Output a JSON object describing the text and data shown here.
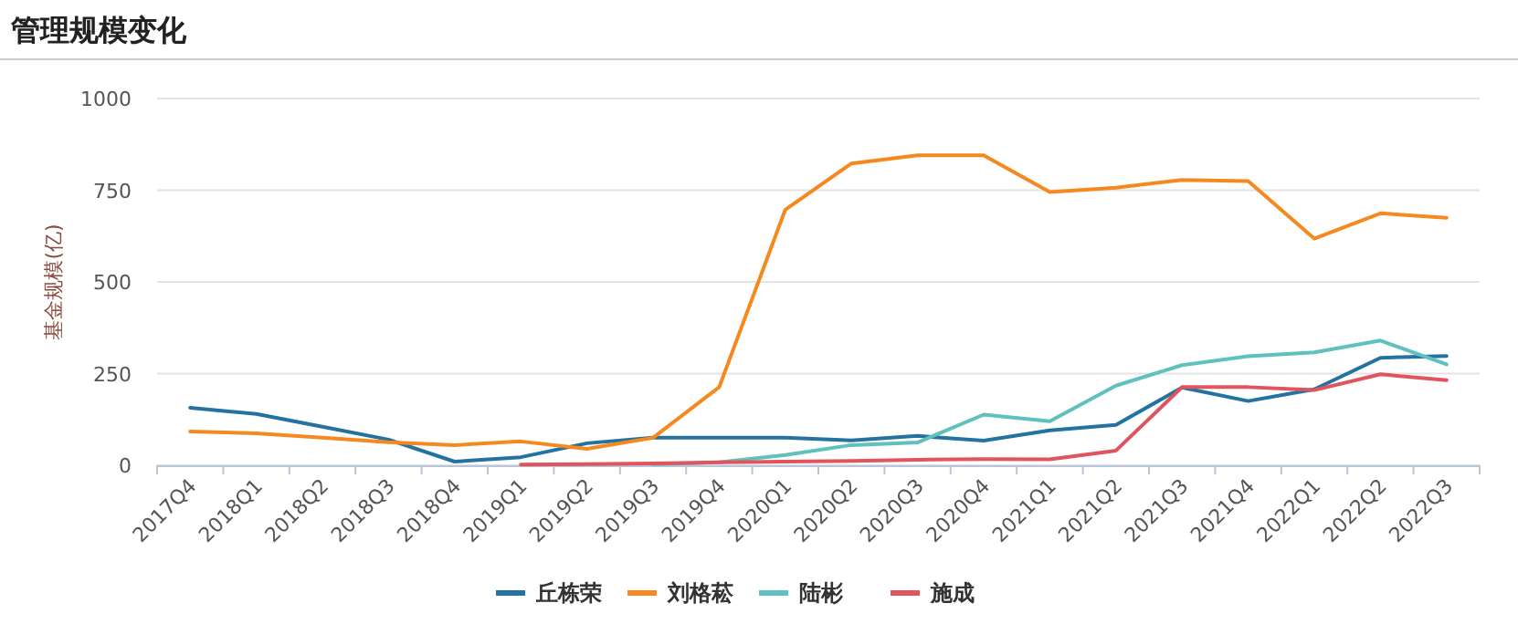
{
  "chart_data": {
    "type": "line",
    "title": "管理规模变化",
    "ylabel": "基金规模(亿)",
    "categories": [
      "2017Q4",
      "2018Q1",
      "2018Q2",
      "2018Q3",
      "2018Q4",
      "2019Q1",
      "2019Q2",
      "2019Q3",
      "2019Q4",
      "2020Q1",
      "2020Q2",
      "2020Q3",
      "2020Q4",
      "2021Q1",
      "2021Q2",
      "2021Q3",
      "2021Q4",
      "2022Q1",
      "2022Q2",
      "2022Q3"
    ],
    "series": [
      {
        "name": "丘栋荣",
        "color": "#23729f",
        "values": [
          157,
          140,
          105,
          70,
          10,
          22,
          60,
          75,
          75,
          75,
          68,
          80,
          67,
          95,
          110,
          212,
          175,
          207,
          293,
          298
        ]
      },
      {
        "name": "刘格菘",
        "color": "#f5891f",
        "values": [
          92,
          87,
          75,
          63,
          55,
          65,
          45,
          75,
          213,
          697,
          823,
          845,
          845,
          745,
          757,
          778,
          775,
          618,
          687,
          675
        ]
      },
      {
        "name": "陆彬",
        "color": "#5fc1bd",
        "values": [
          null,
          null,
          null,
          null,
          null,
          null,
          null,
          3,
          8,
          28,
          55,
          62,
          138,
          120,
          217,
          273,
          297,
          308,
          340,
          275
        ]
      },
      {
        "name": "施成",
        "color": "#e0545e",
        "values": [
          null,
          null,
          null,
          null,
          null,
          2,
          3,
          5,
          8,
          10,
          12,
          15,
          17,
          16,
          40,
          213,
          213,
          205,
          248,
          232
        ]
      }
    ],
    "ylim": [
      0,
      1000
    ],
    "yticks": [
      0,
      250,
      500,
      750,
      1000
    ],
    "grid": "y",
    "legend": "bottom",
    "marker": "none",
    "line_style": "solid"
  }
}
